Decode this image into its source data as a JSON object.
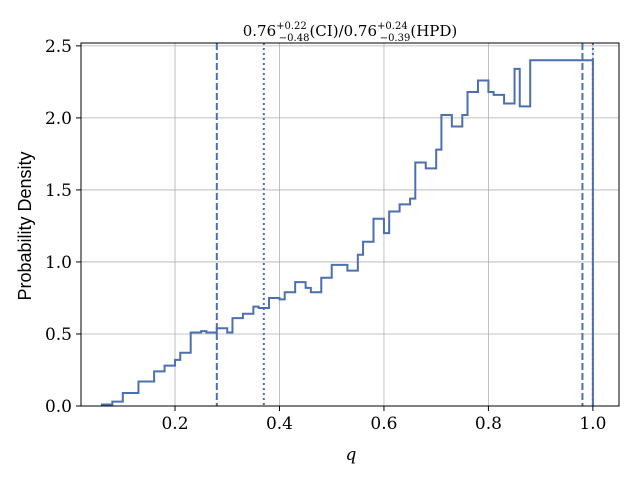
{
  "chart_data": {
    "type": "histogram",
    "title": {
      "ci_value": "0.76",
      "ci_plus": "+0.22",
      "ci_minus": "−0.48",
      "ci_tag": "(CI)",
      "separator": "/",
      "hpd_value": "0.76",
      "hpd_plus": "+0.24",
      "hpd_minus": "−0.39",
      "hpd_tag": "(HPD)"
    },
    "xlabel": "q",
    "ylabel": "Probability Density",
    "xlim": [
      0.02,
      1.05
    ],
    "ylim": [
      0,
      2.52
    ],
    "grid": true,
    "x_ticks": [
      0.2,
      0.4,
      0.6,
      0.8,
      1.0
    ],
    "x_tick_labels": [
      "0.2",
      "0.4",
      "0.6",
      "0.8",
      "1.0"
    ],
    "y_ticks": [
      0.0,
      0.5,
      1.0,
      1.5,
      2.0,
      2.5
    ],
    "y_tick_labels": [
      "0.0",
      "0.5",
      "1.0",
      "1.5",
      "2.0",
      "2.5"
    ],
    "bin_edges": [
      0.06,
      0.08,
      0.1,
      0.12,
      0.13,
      0.15,
      0.16,
      0.18,
      0.2,
      0.21,
      0.23,
      0.25,
      0.26,
      0.28,
      0.3,
      0.31,
      0.33,
      0.35,
      0.36,
      0.38,
      0.4,
      0.41,
      0.43,
      0.45,
      0.46,
      0.48,
      0.5,
      0.51,
      0.53,
      0.55,
      0.56,
      0.58,
      0.6,
      0.61,
      0.63,
      0.65,
      0.66,
      0.68,
      0.7,
      0.71,
      0.73,
      0.75,
      0.76,
      0.78,
      0.8,
      0.81,
      0.83,
      0.85,
      0.86,
      0.88,
      0.9,
      0.91,
      0.93,
      0.95,
      0.96,
      0.98,
      1.0
    ],
    "density": [
      0.01,
      0.03,
      0.09,
      0.09,
      0.17,
      0.17,
      0.24,
      0.28,
      0.32,
      0.37,
      0.51,
      0.52,
      0.51,
      0.54,
      0.51,
      0.61,
      0.64,
      0.69,
      0.68,
      0.75,
      0.74,
      0.79,
      0.86,
      0.82,
      0.79,
      0.89,
      0.98,
      0.98,
      0.94,
      1.05,
      1.14,
      1.3,
      1.2,
      1.35,
      1.4,
      1.44,
      1.69,
      1.65,
      1.78,
      2.02,
      1.94,
      2.02,
      2.18,
      2.26,
      2.18,
      2.16,
      2.1,
      2.34,
      2.08,
      2.4,
      2.4,
      2.4,
      2.4,
      2.4,
      2.4,
      2.4
    ],
    "ci_lines": [
      0.28,
      0.98
    ],
    "hpd_lines": [
      0.37,
      1.0
    ],
    "colors": {
      "line": "#4c6fb0",
      "grid": "#b0b0b0",
      "axes": "#000000"
    }
  }
}
